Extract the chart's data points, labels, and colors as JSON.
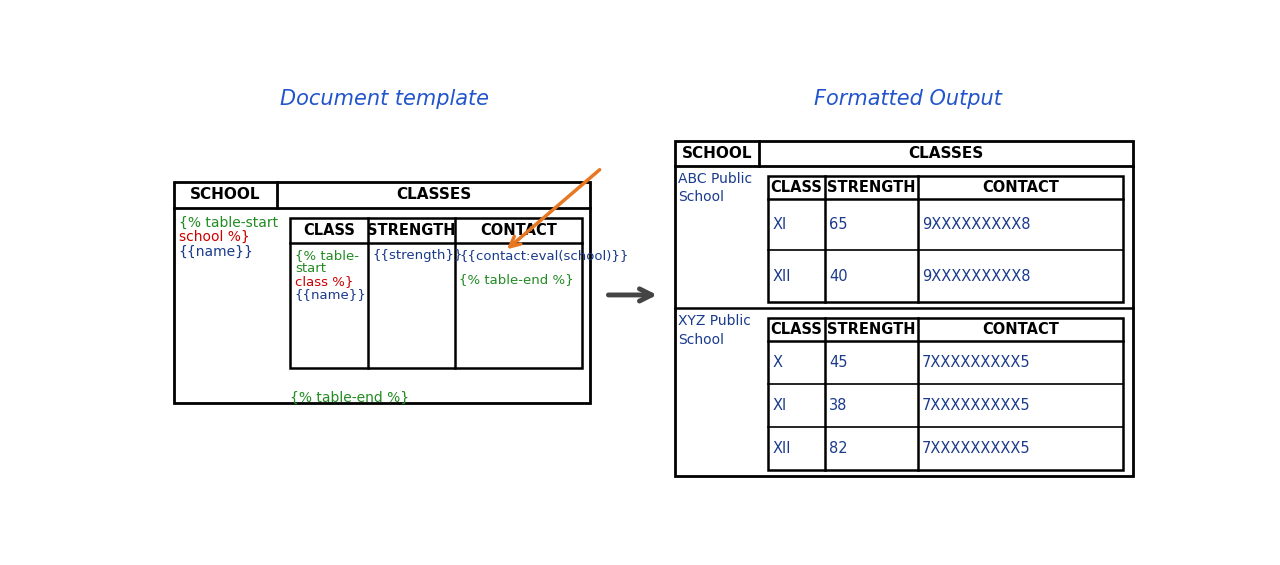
{
  "title_left": "Document template",
  "title_right": "Formatted Output",
  "title_color": "#2255cc",
  "bg_color": "#ffffff",
  "black": "#000000",
  "green": "#228B22",
  "red": "#cc0000",
  "blue": "#1a3a8c",
  "orange": "#E87722",
  "gray_arrow": "#444444",
  "left_table": {
    "school_cell_lines": [
      {
        "text": "{% table-start",
        "color": "#228B22"
      },
      {
        "text": "school %}",
        "color": "#cc0000"
      },
      {
        "text": "{{name}}",
        "color": "#1a3a8c"
      }
    ],
    "bottom_cell_text": "{% table-end %}",
    "bottom_cell_color": "#228B22",
    "inner_class_lines": [
      {
        "text": "{% table-",
        "color": "#228B22"
      },
      {
        "text": "start",
        "color": "#228B22"
      },
      {
        "text": "class %}",
        "color": "#cc0000"
      },
      {
        "text": "{{name}}",
        "color": "#1a3a8c"
      }
    ],
    "inner_strength": "{{strength}}",
    "inner_strength_color": "#1a3a8c",
    "inner_contact_lines": [
      {
        "text": "{{contact:eval(school)}}",
        "color": "#1a3a8c"
      },
      {
        "text": "{% table-end %}",
        "color": "#228B22"
      }
    ]
  },
  "right_table": {
    "schools": [
      {
        "name": "ABC Public\nSchool",
        "classes": [
          {
            "class": "XI",
            "strength": "65",
            "contact": "9XXXXXXXXX8"
          },
          {
            "class": "XII",
            "strength": "40",
            "contact": "9XXXXXXXXX8"
          }
        ]
      },
      {
        "name": "XYZ Public\nSchool",
        "classes": [
          {
            "class": "X",
            "strength": "45",
            "contact": "7XXXXXXXXX5"
          },
          {
            "class": "XI",
            "strength": "38",
            "contact": "7XXXXXXXXX5"
          },
          {
            "class": "XII",
            "strength": "82",
            "contact": "7XXXXXXXXX5"
          }
        ]
      }
    ]
  }
}
